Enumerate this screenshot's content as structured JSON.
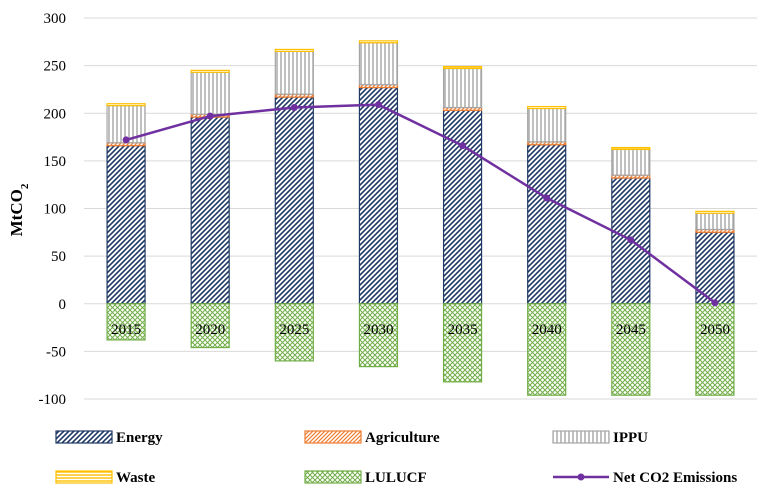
{
  "chart_data": {
    "type": "bar",
    "stacked": true,
    "categories": [
      "2015",
      "2020",
      "2025",
      "2030",
      "2035",
      "2040",
      "2045",
      "2050"
    ],
    "series": [
      {
        "name": "Energy",
        "values": [
          166,
          196,
          217,
          227,
          203,
          167,
          132,
          75
        ],
        "color": "#1f3864",
        "pattern": "diagonal-hatch"
      },
      {
        "name": "Agriculture",
        "values": [
          3,
          3,
          3,
          3,
          3,
          3,
          3,
          3
        ],
        "color": "#ed7d31",
        "pattern": "diagonal-hatch"
      },
      {
        "name": "IPPU",
        "values": [
          39,
          44,
          45,
          44,
          41,
          35,
          27,
          17
        ],
        "color": "#a5a5a5",
        "pattern": "vertical-lines"
      },
      {
        "name": "Waste",
        "values": [
          2,
          2,
          2,
          2,
          2,
          2,
          2,
          2
        ],
        "color": "#ffc000",
        "pattern": "horizontal-lines"
      },
      {
        "name": "LULUCF",
        "values": [
          -38,
          -46,
          -60,
          -66,
          -82,
          -96,
          -96,
          -96
        ],
        "color": "#70ad47",
        "pattern": "cross-hatch"
      }
    ],
    "line_series": {
      "name": "Net CO2 Emissions",
      "values": [
        172,
        197,
        206,
        209,
        166,
        111,
        67,
        1
      ],
      "color": "#7030a0"
    },
    "ylabel_main": "MtCO",
    "ylabel_sub": "2",
    "ylim": [
      -100,
      300
    ],
    "yticks": [
      -100,
      -50,
      0,
      50,
      100,
      150,
      200,
      250,
      300
    ],
    "grid": true,
    "legend_position": "bottom"
  }
}
